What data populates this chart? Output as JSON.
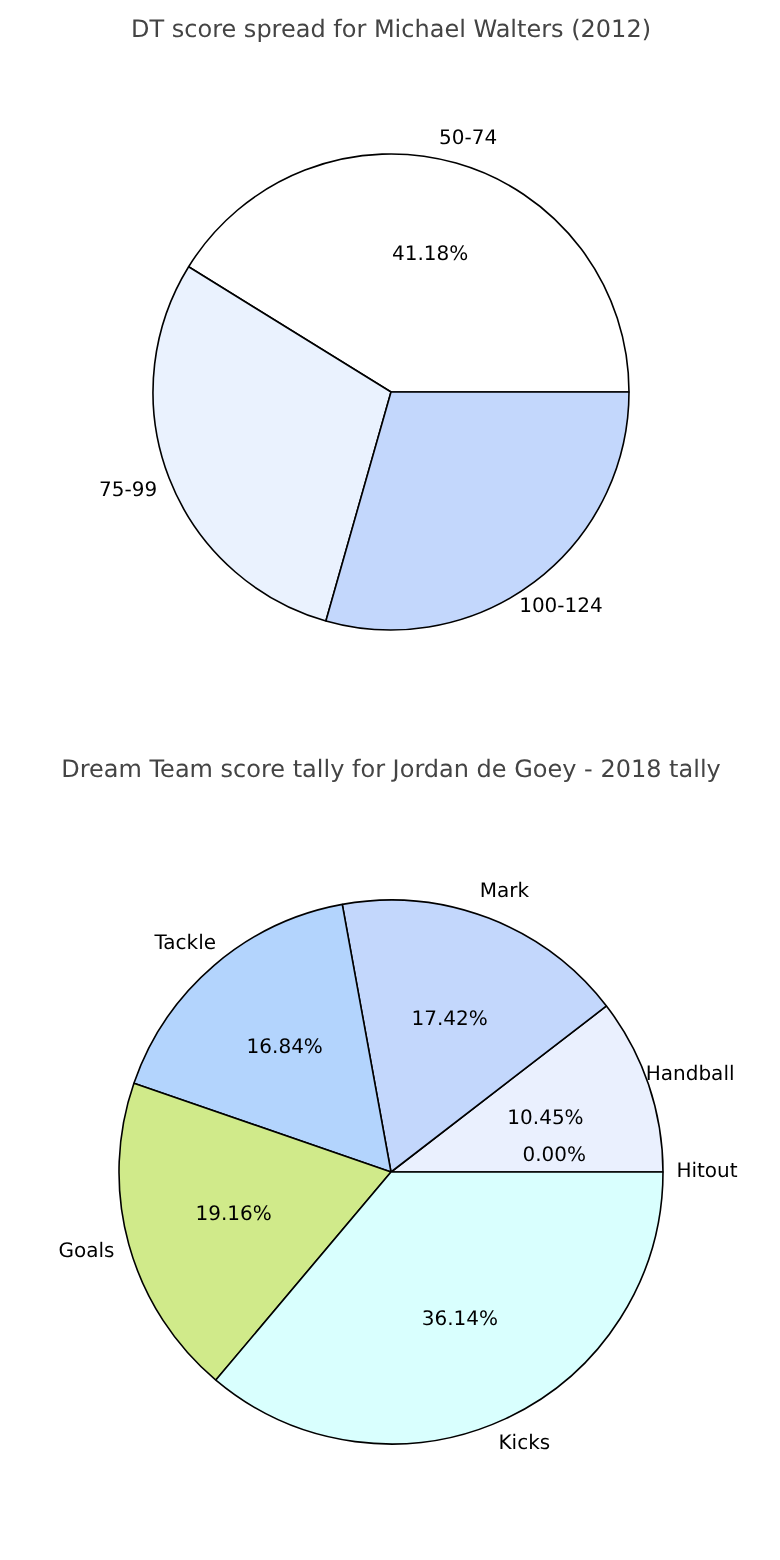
{
  "chart_data": [
    {
      "type": "pie",
      "title": "DT score spread for Michael Walters (2012)",
      "categories": [
        "50-74",
        "75-99",
        "100-124"
      ],
      "values": [
        41.18,
        29.41,
        29.41
      ],
      "colors": [
        "#ffffff",
        "#eaf2fe",
        "#c3d7fc"
      ],
      "value_labels": [
        "41.18%",
        null,
        null
      ]
    },
    {
      "type": "pie",
      "title": "Dream Team score tally for Jordan de Goey - 2018 tally",
      "categories": [
        "Handball",
        "Mark",
        "Tackle",
        "Goals",
        "Kicks",
        "Hitout"
      ],
      "values": [
        10.45,
        17.42,
        16.84,
        19.16,
        36.14,
        0.0
      ],
      "colors": [
        "#eaf0fe",
        "#c3d7fc",
        "#b3d4fd",
        "#d0ea8a",
        "#d9fffe",
        "#eaf0fe"
      ],
      "value_labels": [
        "10.45%",
        "17.42%",
        "16.84%",
        "19.16%",
        "36.14%",
        "0.00%"
      ]
    }
  ]
}
